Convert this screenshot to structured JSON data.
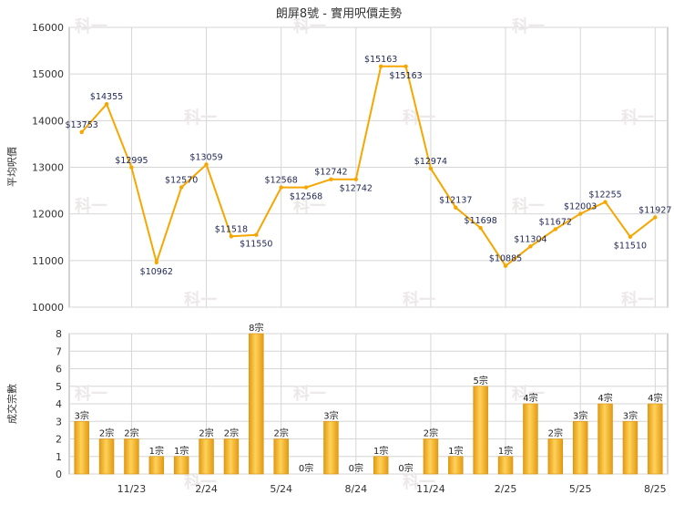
{
  "chart_data": [
    {
      "type": "line",
      "title": "朗屏8號 - 實用呎價走勢",
      "ylabel": "平均呎價",
      "ylim": [
        10000,
        16000
      ],
      "yticks": [
        10000,
        11000,
        12000,
        13000,
        14000,
        15000,
        16000
      ],
      "grid": true,
      "color": "#f5a700",
      "series": [
        {
          "values": [
            13753,
            14355,
            12995,
            10962,
            12570,
            13059,
            11518,
            11550,
            12568,
            12568,
            12742,
            12742,
            15163,
            15163,
            12974,
            12137,
            11698,
            10885,
            11304,
            11672,
            12003,
            12255,
            11510,
            11927
          ],
          "labels": [
            "$13753",
            "$14355",
            "$12995",
            "$10962",
            "$12570",
            "$13059",
            "$11518",
            "$11550",
            "$12568",
            "$12568",
            "$12742",
            "$12742",
            "$15163",
            "$15163",
            "$12974",
            "$12137",
            "$11698",
            "$10885",
            "$11304",
            "$11672",
            "$12003",
            "$12255",
            "$11510",
            "$11927"
          ]
        }
      ]
    },
    {
      "type": "bar",
      "ylabel": "成交宗數",
      "ylim": [
        0,
        8
      ],
      "yticks": [
        0,
        1,
        2,
        3,
        4,
        5,
        6,
        7,
        8
      ],
      "xtick_labels": [
        "11/23",
        "2/24",
        "5/24",
        "8/24",
        "11/24",
        "2/25",
        "5/25",
        "8/25"
      ],
      "grid": true,
      "color": "#f0b020",
      "values": [
        3,
        2,
        2,
        1,
        1,
        2,
        2,
        8,
        2,
        0,
        3,
        0,
        1,
        0,
        2,
        1,
        5,
        1,
        4,
        2,
        3,
        4,
        3,
        4
      ],
      "labels": [
        "3宗",
        "2宗",
        "2宗",
        "1宗",
        "1宗",
        "2宗",
        "2宗",
        "8宗",
        "2宗",
        "0宗",
        "3宗",
        "0宗",
        "1宗",
        "0宗",
        "2宗",
        "1宗",
        "5宗",
        "1宗",
        "4宗",
        "2宗",
        "3宗",
        "4宗",
        "3宗",
        "4宗"
      ]
    }
  ],
  "watermark": "科一"
}
